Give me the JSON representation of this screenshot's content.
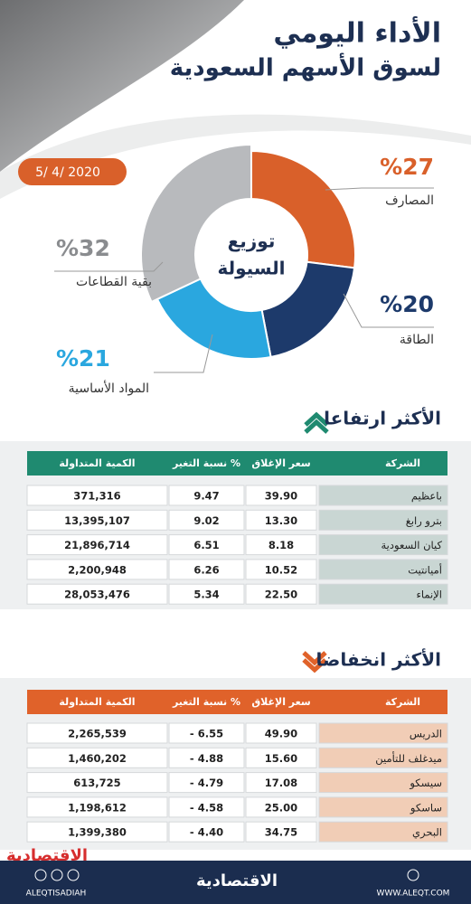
{
  "header": {
    "title": "الأداء اليومي",
    "subtitle": "لسوق الأسهم السعودية",
    "date": "5/ 4/ 2020"
  },
  "chart_data": {
    "type": "donut",
    "center_label": [
      "توزيع",
      "السيولة"
    ],
    "categories": [
      "المصارف",
      "الطاقة",
      "المواد الأساسية",
      "بقية القطاعات"
    ],
    "values": [
      27,
      20,
      21,
      32
    ],
    "value_labels": [
      "%27",
      "%20",
      "%21",
      "%32"
    ],
    "colors": [
      "#d9602a",
      "#1d3a6b",
      "#2aa7df",
      "#b8babd"
    ]
  },
  "gainers": {
    "title": "الأكثر ارتفاعا",
    "header": [
      "الشركة",
      "سعر الإغلاق",
      "نسبة التغير %",
      "الكمية المتداولة"
    ],
    "rows": [
      [
        "باعظيم",
        "39.90",
        "9.47",
        "371,316"
      ],
      [
        "بترو رابغ",
        "13.30",
        "9.02",
        "13,395,107"
      ],
      [
        "كيان السعودية",
        "8.18",
        "6.51",
        "21,896,714"
      ],
      [
        "أميانتيت",
        "10.52",
        "6.26",
        "2,200,948"
      ],
      [
        "الإنماء",
        "22.50",
        "5.34",
        "28,053,476"
      ]
    ]
  },
  "losers": {
    "title": "الأكثر انخفاضا",
    "header": [
      "الشركة",
      "سعر الإغلاق",
      "نسبة التغير %",
      "الكمية المتداولة"
    ],
    "rows": [
      [
        "الدريس",
        "49.90",
        "- 6.55",
        "2,265,539"
      ],
      [
        "ميدغلف للتأمين",
        "15.60",
        "- 4.88",
        "1,460,202"
      ],
      [
        "سيسكو",
        "17.08",
        "- 4.79",
        "613,725"
      ],
      [
        "ساسكو",
        "25.00",
        "- 4.58",
        "1,198,612"
      ],
      [
        "البحري",
        "34.75",
        "- 4.40",
        "1,399,380"
      ]
    ]
  },
  "footer": {
    "logo": "الاقتصادية",
    "handle": "ALEQTISADIAH",
    "brand": "الاقتصادية",
    "website": "WWW.ALEQT.COM"
  }
}
